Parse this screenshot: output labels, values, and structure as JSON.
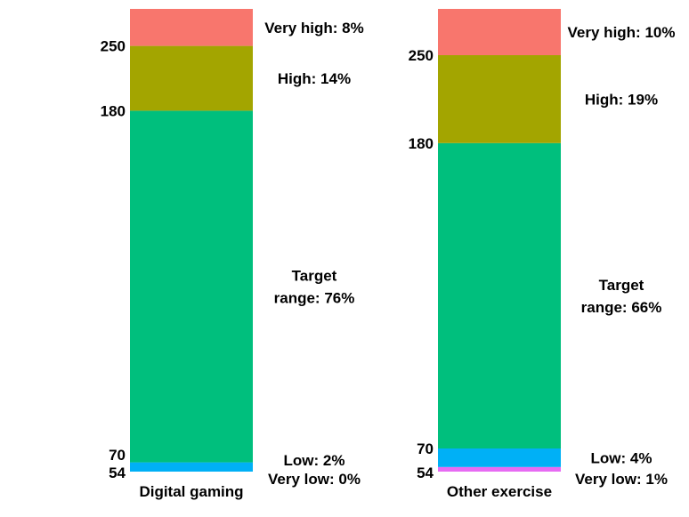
{
  "chart_data": {
    "type": "stacked-bar",
    "title": "",
    "categories": [
      "Digital gaming",
      "Other exercise"
    ],
    "series": [
      {
        "name": "Very low",
        "color": "#E76BF3"
      },
      {
        "name": "Low",
        "color": "#00B0F6"
      },
      {
        "name": "Target range",
        "color": "#00BF7D"
      },
      {
        "name": "High",
        "color": "#A3A500"
      },
      {
        "name": "Very high",
        "color": "#F8766D"
      }
    ],
    "bars": [
      {
        "category": "Digital gaming",
        "values": [
          0,
          2,
          76,
          14,
          8
        ],
        "labels": [
          [
            "Very low: 0%"
          ],
          [
            "Low: 2%"
          ],
          [
            "Target",
            "range: 76%"
          ],
          [
            "High: 14%"
          ],
          [
            "Very high: 8%"
          ]
        ]
      },
      {
        "category": "Other exercise",
        "values": [
          1,
          4,
          66,
          19,
          10
        ],
        "labels": [
          [
            "Very low: 1%"
          ],
          [
            "Low: 4%"
          ],
          [
            "Target",
            "range: 66%"
          ],
          [
            "High: 19%"
          ],
          [
            "Very high: 10%"
          ]
        ]
      }
    ],
    "boundary_ticks": [
      "54",
      "70",
      "180",
      "250"
    ]
  }
}
